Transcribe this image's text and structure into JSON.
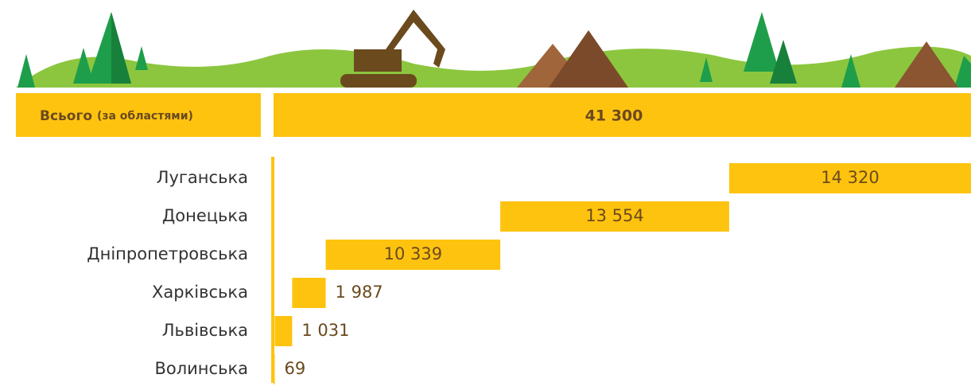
{
  "chart_data": {
    "type": "waterfall",
    "total_title": "Всього",
    "total_subtitle": "(за областями)",
    "total": 41300,
    "total_label": "41 300",
    "categories": [
      "Луганська",
      "Донецька",
      "Дніпропетровська",
      "Харківська",
      "Львівська",
      "Волинська"
    ],
    "values": [
      14320,
      13554,
      10339,
      1987,
      1031,
      69
    ],
    "value_labels": [
      "14 320",
      "13 554",
      "10 339",
      "1 987",
      "1 031",
      "69"
    ],
    "color": "#fec30f",
    "label_color": "#6b4a1e"
  }
}
